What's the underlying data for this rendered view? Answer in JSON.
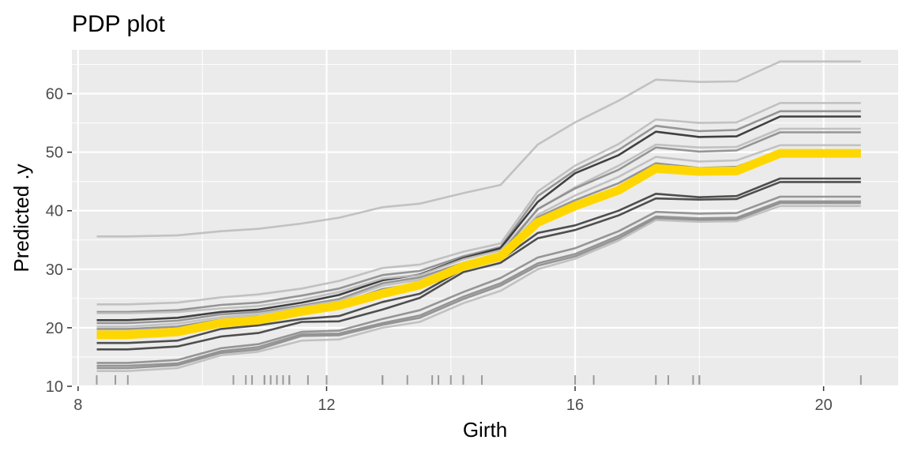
{
  "chart_data": {
    "type": "line",
    "title": "PDP plot",
    "xlabel": "Girth",
    "ylabel": "Predicted .y",
    "xlim": [
      7.9,
      21.2
    ],
    "ylim": [
      10,
      67.5
    ],
    "x_ticks": [
      8,
      12,
      16,
      20
    ],
    "y_ticks": [
      10,
      20,
      30,
      40,
      50,
      60
    ],
    "grid": true,
    "legend": "none",
    "x": [
      8.3,
      8.8,
      9.6,
      10.3,
      10.9,
      11.6,
      12.2,
      12.9,
      13.5,
      14.2,
      14.8,
      15.4,
      16.0,
      16.7,
      17.3,
      18.0,
      18.6,
      19.3,
      20.6
    ],
    "pdp": {
      "color": "#FFD700",
      "values": [
        18.8,
        18.8,
        19.3,
        20.8,
        21.3,
        22.8,
        23.8,
        25.8,
        27.3,
        30.5,
        32.2,
        38.0,
        40.8,
        43.5,
        47.2,
        46.7,
        46.8,
        49.8,
        49.8
      ]
    },
    "ice_series": [
      {
        "color": "#bdbdbd",
        "values": [
          35.6,
          35.6,
          35.8,
          36.5,
          36.9,
          37.8,
          38.8,
          40.6,
          41.2,
          43.0,
          44.4,
          51.3,
          55.1,
          58.8,
          62.4,
          62.0,
          62.1,
          65.5,
          65.5
        ]
      },
      {
        "color": "#bdbdbd",
        "values": [
          24.0,
          24.0,
          24.3,
          25.2,
          25.7,
          26.7,
          28.0,
          30.2,
          30.8,
          33.0,
          34.4,
          43.3,
          47.7,
          51.4,
          55.6,
          55.0,
          55.1,
          58.4,
          58.4
        ]
      },
      {
        "color": "#8c8c8c",
        "values": [
          22.7,
          22.7,
          23.0,
          23.9,
          24.3,
          25.5,
          26.7,
          29.0,
          29.7,
          32.2,
          33.8,
          42.5,
          46.9,
          50.4,
          54.5,
          53.6,
          53.8,
          57.0,
          57.0
        ]
      },
      {
        "color": "#2e2e2e",
        "values": [
          21.3,
          21.3,
          21.7,
          22.7,
          23.1,
          24.3,
          25.6,
          28.1,
          29.1,
          31.9,
          33.6,
          41.5,
          46.4,
          49.5,
          53.5,
          52.6,
          52.7,
          56.1,
          56.1
        ]
      },
      {
        "color": "#bdbdbd",
        "values": [
          22.5,
          22.5,
          22.7,
          23.3,
          23.7,
          24.8,
          26.1,
          28.4,
          29.0,
          31.7,
          33.2,
          40.2,
          44.0,
          47.7,
          51.3,
          50.8,
          50.9,
          54.0,
          54.0
        ]
      },
      {
        "color": "#8c8c8c",
        "values": [
          20.8,
          20.8,
          21.2,
          22.3,
          22.7,
          23.8,
          24.9,
          27.6,
          28.6,
          31.1,
          32.6,
          40.3,
          43.8,
          47.0,
          50.8,
          50.1,
          50.3,
          53.4,
          53.4
        ]
      },
      {
        "color": "#bdbdbd",
        "values": [
          20.2,
          20.2,
          20.7,
          21.8,
          22.3,
          23.6,
          24.6,
          27.2,
          28.2,
          30.9,
          32.3,
          39.3,
          42.6,
          45.8,
          49.2,
          48.4,
          48.6,
          51.2,
          51.2
        ]
      },
      {
        "color": "#8c8c8c",
        "values": [
          19.8,
          19.8,
          20.2,
          21.4,
          21.9,
          22.9,
          24.1,
          26.6,
          27.6,
          30.4,
          31.9,
          38.9,
          41.8,
          44.7,
          48.1,
          47.3,
          47.5,
          50.2,
          50.2
        ]
      },
      {
        "color": "#3d3d3d",
        "values": [
          17.4,
          17.4,
          17.8,
          19.8,
          20.4,
          21.5,
          22.0,
          24.4,
          25.8,
          30.0,
          31.6,
          36.2,
          37.5,
          40.0,
          42.9,
          42.3,
          42.5,
          45.5,
          45.5
        ]
      },
      {
        "color": "#3d3d3d",
        "values": [
          16.3,
          16.3,
          16.8,
          18.5,
          19.1,
          21.0,
          21.1,
          23.1,
          25.1,
          29.5,
          31.1,
          35.3,
          36.7,
          39.2,
          42.1,
          41.9,
          42.0,
          44.9,
          44.9
        ]
      },
      {
        "color": "#8c8c8c",
        "values": [
          14.0,
          14.0,
          14.5,
          16.5,
          17.2,
          19.3,
          19.5,
          21.5,
          23.0,
          26.1,
          28.5,
          32.0,
          33.6,
          36.5,
          39.8,
          39.5,
          39.6,
          42.4,
          42.4
        ]
      },
      {
        "color": "#8c8c8c",
        "values": [
          13.5,
          13.5,
          13.9,
          16.0,
          16.7,
          18.9,
          19.0,
          20.8,
          22.1,
          25.3,
          27.6,
          31.0,
          32.6,
          35.7,
          39.0,
          38.7,
          38.8,
          41.6,
          41.6
        ]
      },
      {
        "color": "#8c8c8c",
        "values": [
          13.1,
          13.1,
          13.6,
          15.7,
          16.3,
          18.6,
          18.7,
          20.5,
          21.7,
          24.9,
          27.2,
          30.6,
          32.2,
          35.3,
          38.7,
          38.4,
          38.5,
          41.3,
          41.3
        ]
      },
      {
        "color": "#bdbdbd",
        "values": [
          12.6,
          12.6,
          13.1,
          15.3,
          15.9,
          17.8,
          18.0,
          20.0,
          21.0,
          24.2,
          26.3,
          30.0,
          31.8,
          34.9,
          38.4,
          38.1,
          38.2,
          40.8,
          40.8
        ]
      }
    ],
    "rug": [
      8.3,
      8.6,
      8.8,
      10.5,
      10.7,
      10.8,
      11.0,
      11.0,
      11.1,
      11.2,
      11.3,
      11.4,
      11.4,
      11.7,
      12.0,
      12.9,
      12.9,
      13.3,
      13.7,
      13.8,
      14.0,
      14.2,
      14.5,
      16.0,
      16.3,
      17.3,
      17.5,
      17.9,
      18.0,
      18.0,
      20.6
    ]
  }
}
